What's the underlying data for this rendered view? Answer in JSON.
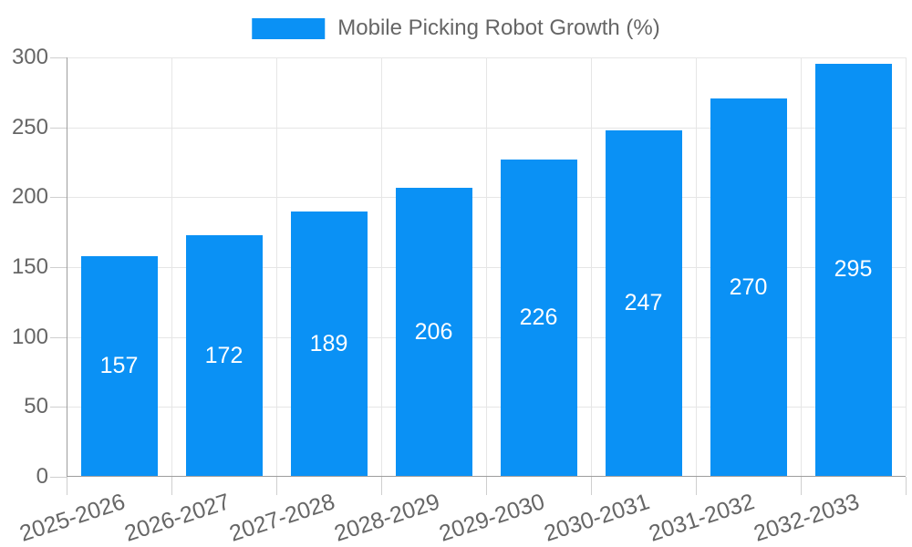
{
  "chart_data": {
    "type": "bar",
    "title": "",
    "series_name": "Mobile Picking Robot Growth (%)",
    "series_color": "#0a91f5",
    "categories": [
      "2025-2026",
      "2026-2027",
      "2027-2028",
      "2028-2029",
      "2029-2030",
      "2030-2031",
      "2031-2032",
      "2032-2033"
    ],
    "values": [
      157,
      172,
      189,
      206,
      226,
      247,
      270,
      295
    ],
    "xlabel": "",
    "ylabel": "",
    "ylim": [
      0,
      300
    ],
    "y_ticks": [
      0,
      50,
      100,
      150,
      200,
      250,
      300
    ],
    "grid": true,
    "legend_position": "top-center",
    "bar_label_position": "inside-center"
  },
  "colors": {
    "series": "#0a91f5",
    "bar_label_text": "#ffffff",
    "axis_label_text": "#666666",
    "legend_text": "#666666",
    "gridline": "#e6e6e6",
    "axis_line": "#9e9e9e",
    "tick_mark": "#cfcfcf",
    "background": "#ffffff"
  }
}
